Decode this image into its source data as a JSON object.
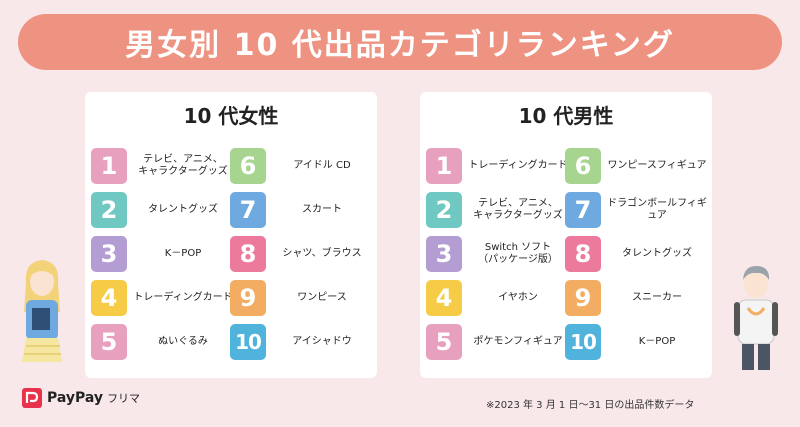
{
  "banner": {
    "title": "男女別 10 代出品カテゴリランキング"
  },
  "female": {
    "title": "10 代女性",
    "items": [
      {
        "rank": "1",
        "label": "テレビ、アニメ、\nキャラクターグッズ",
        "color": "#e8a0bf"
      },
      {
        "rank": "2",
        "label": "タレントグッズ",
        "color": "#6fc8c2"
      },
      {
        "rank": "3",
        "label": "K－POP",
        "color": "#b39dd3"
      },
      {
        "rank": "4",
        "label": "トレーディングカード",
        "color": "#f6cc47"
      },
      {
        "rank": "5",
        "label": "ぬいぐるみ",
        "color": "#e8a0bf"
      },
      {
        "rank": "6",
        "label": "アイドル CD",
        "color": "#a7d48e"
      },
      {
        "rank": "7",
        "label": "スカート",
        "color": "#6ea9df"
      },
      {
        "rank": "8",
        "label": "シャツ、ブラウス",
        "color": "#ec7a9d"
      },
      {
        "rank": "9",
        "label": "ワンピース",
        "color": "#f2ad62"
      },
      {
        "rank": "10",
        "label": "アイシャドウ",
        "color": "#4fb3db"
      }
    ]
  },
  "male": {
    "title": "10 代男性",
    "items": [
      {
        "rank": "1",
        "label": "トレーディングカード",
        "color": "#e8a0bf"
      },
      {
        "rank": "2",
        "label": "テレビ、アニメ、\nキャラクターグッズ",
        "color": "#6fc8c2"
      },
      {
        "rank": "3",
        "label": "Switch ソフト\n（パッケージ版）",
        "color": "#b39dd3"
      },
      {
        "rank": "4",
        "label": "イヤホン",
        "color": "#f6cc47"
      },
      {
        "rank": "5",
        "label": "ポケモンフィギュア",
        "color": "#e8a0bf"
      },
      {
        "rank": "6",
        "label": "ワンピースフィギュア",
        "color": "#a7d48e"
      },
      {
        "rank": "7",
        "label": "ドラゴンボールフィギュア",
        "color": "#6ea9df"
      },
      {
        "rank": "8",
        "label": "タレントグッズ",
        "color": "#ec7a9d"
      },
      {
        "rank": "9",
        "label": "スニーカー",
        "color": "#f2ad62"
      },
      {
        "rank": "10",
        "label": "K－POP",
        "color": "#4fb3db"
      }
    ]
  },
  "logo": {
    "text": "PayPay",
    "sub": "フリマ",
    "icon": "paypay-logo-icon"
  },
  "footnote": "※2023 年 3 月 1 日～31 日の出品件数データ"
}
